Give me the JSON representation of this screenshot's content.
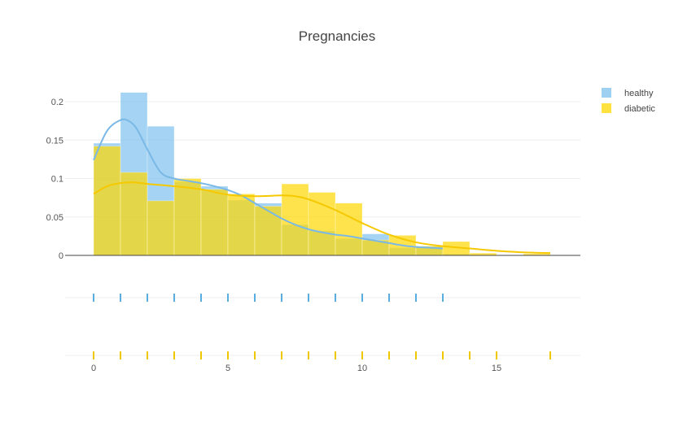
{
  "chart_data": {
    "type": "histogram-distplot",
    "title": "Pregnancies",
    "xlabel": "",
    "ylabel": "",
    "xlim": [
      -1.1,
      18.0
    ],
    "ylim": [
      0,
      0.2
    ],
    "x_ticks": [
      0,
      5,
      10,
      15
    ],
    "y_ticks": [
      0,
      0.05,
      0.1,
      0.15,
      0.2
    ],
    "y_tick_labels": [
      "0",
      "0.05",
      "0.1",
      "0.15",
      "0.2"
    ],
    "legend_position": "top-right",
    "grid": true,
    "bin_edges": [
      0,
      1,
      2,
      3,
      4,
      5,
      6,
      7,
      8,
      9,
      10,
      11,
      12,
      13,
      14,
      15,
      16,
      17
    ],
    "series": [
      {
        "name": "healthy",
        "color": "#7ec0ee",
        "kde_color": "#7ab8e6",
        "rug_color": "#58aee0",
        "hist_density": [
          0.146,
          0.212,
          0.168,
          0.096,
          0.09,
          0.072,
          0.068,
          0.04,
          0.032,
          0.022,
          0.028,
          0.01,
          0.012,
          0.002,
          0,
          0,
          0
        ],
        "kde_x": [
          0,
          0.5,
          1,
          1.3,
          1.6,
          2,
          2.5,
          3,
          3.5,
          4,
          4.5,
          5,
          5.5,
          6,
          6.5,
          7,
          7.5,
          8,
          8.5,
          9,
          9.5,
          10,
          10.5,
          11,
          11.5,
          12,
          12.5,
          13
        ],
        "kde_y": [
          0.124,
          0.162,
          0.176,
          0.175,
          0.165,
          0.138,
          0.108,
          0.1,
          0.097,
          0.094,
          0.09,
          0.085,
          0.078,
          0.068,
          0.058,
          0.048,
          0.04,
          0.034,
          0.03,
          0.027,
          0.025,
          0.022,
          0.019,
          0.016,
          0.013,
          0.011,
          0.01,
          0.009
        ],
        "rug_values": [
          0,
          1,
          2,
          3,
          4,
          5,
          6,
          7,
          8,
          9,
          10,
          11,
          12,
          13
        ]
      },
      {
        "name": "diabetic",
        "color": "#ffd700",
        "kde_color": "#f5c800",
        "rug_color": "#f0c800",
        "hist_density": [
          0.142,
          0.108,
          0.071,
          0.1,
          0.086,
          0.08,
          0.064,
          0.093,
          0.082,
          0.068,
          0.02,
          0.026,
          0.012,
          0.018,
          0.003,
          0,
          0.002
        ],
        "kde_x": [
          0,
          0.5,
          1,
          1.5,
          2,
          3,
          4,
          5,
          6,
          7,
          7.5,
          8,
          9,
          10,
          11,
          12,
          13,
          14,
          15,
          16,
          17
        ],
        "kde_y": [
          0.08,
          0.09,
          0.094,
          0.095,
          0.093,
          0.09,
          0.086,
          0.079,
          0.077,
          0.078,
          0.077,
          0.073,
          0.059,
          0.042,
          0.027,
          0.017,
          0.012,
          0.009,
          0.006,
          0.004,
          0.003
        ],
        "rug_values": [
          0,
          1,
          2,
          3,
          4,
          5,
          6,
          7,
          8,
          9,
          10,
          11,
          12,
          13,
          14,
          15,
          17
        ]
      }
    ]
  }
}
